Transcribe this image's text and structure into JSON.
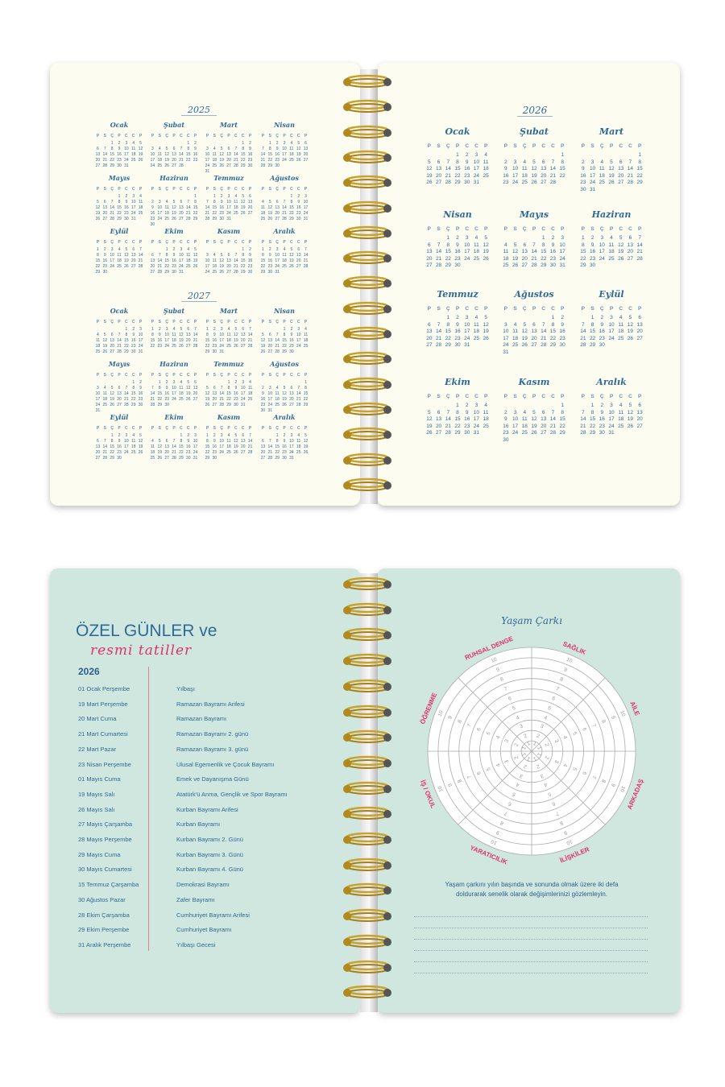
{
  "calendar": {
    "weekdays": [
      "P",
      "S",
      "Ç",
      "P",
      "C",
      "C",
      "P"
    ],
    "months": [
      "Ocak",
      "Şubat",
      "Mart",
      "Nisan",
      "Mayıs",
      "Haziran",
      "Temmuz",
      "Ağustos",
      "Eylül",
      "Ekim",
      "Kasım",
      "Aralık"
    ],
    "years": {
      "left_top": "2025",
      "left_bottom": "2027",
      "right": "2026"
    }
  },
  "holidays": {
    "title_line1": "ÖZEL GÜNLER ve",
    "title_line2": "resmi tatiller",
    "year": "2026",
    "items": [
      {
        "date": "01 Ocak Perşembe",
        "name": "Yılbaşı"
      },
      {
        "date": "19 Mart Perşembe",
        "name": "Ramazan Bayramı Arifesi"
      },
      {
        "date": "20 Mart Cuma",
        "name": "Ramazan Bayramı"
      },
      {
        "date": "21 Mart Cumartesi",
        "name": "Ramazan Bayramı 2. günü"
      },
      {
        "date": "22 Mart Pazar",
        "name": "Ramazan Bayramı 3. günü"
      },
      {
        "date": "23 Nisan Perşembe",
        "name": "Ulusal Egemenlik ve Çocuk Bayramı"
      },
      {
        "date": "01 Mayıs Cuma",
        "name": "Emek ve Dayanışma Günü"
      },
      {
        "date": "19 Mayıs Salı",
        "name": "Atatürk'ü Anma, Gençlik ve Spor Bayramı"
      },
      {
        "date": "26 Mayıs Salı",
        "name": "Kurban Bayramı Arifesi"
      },
      {
        "date": "27 Mayıs Çarşamba",
        "name": "Kurban Bayramı"
      },
      {
        "date": "28 Mayıs Perşembe",
        "name": "Kurban Bayramı 2. Günü"
      },
      {
        "date": "29 Mayıs Cuma",
        "name": "Kurban Bayramı 3. Günü"
      },
      {
        "date": "30 Mayıs Cumartesi",
        "name": "Kurban Bayramı 4. Günü"
      },
      {
        "date": "15 Temmuz Çarşamba",
        "name": "Demokrasi Bayramı"
      },
      {
        "date": "30 Ağustos Pazar",
        "name": "Zafer Bayramı"
      },
      {
        "date": "28 Ekim Çarşamba",
        "name": "Cumhuriyet Bayramı Arifesi"
      },
      {
        "date": "29 Ekim Perşembe",
        "name": "Cumhuriyet Bayramı"
      },
      {
        "date": "31 Aralık Perşembe",
        "name": "Yılbaşı Gecesi"
      }
    ]
  },
  "wheel": {
    "title": "Yaşam Çarkı",
    "scale_max": 10,
    "sectors": [
      "SAĞLIK",
      "AİLE",
      "ARKADAŞ",
      "İLİŞKİLER",
      "YARATICILIK",
      "İŞ / OKUL",
      "ÖĞRENME",
      "RUHSAL DENGE"
    ],
    "instruction": "Yaşam çarkını yılın başında ve sonunda olmak üzere iki defa doldurarak senelik olarak değişimlerinizi gözlemleyin."
  },
  "colors": {
    "blue": "#2f6a96",
    "pink": "#e0306e",
    "cream": "#fdfcf0",
    "mint": "#cfe7df",
    "ring": "#c9a227"
  }
}
